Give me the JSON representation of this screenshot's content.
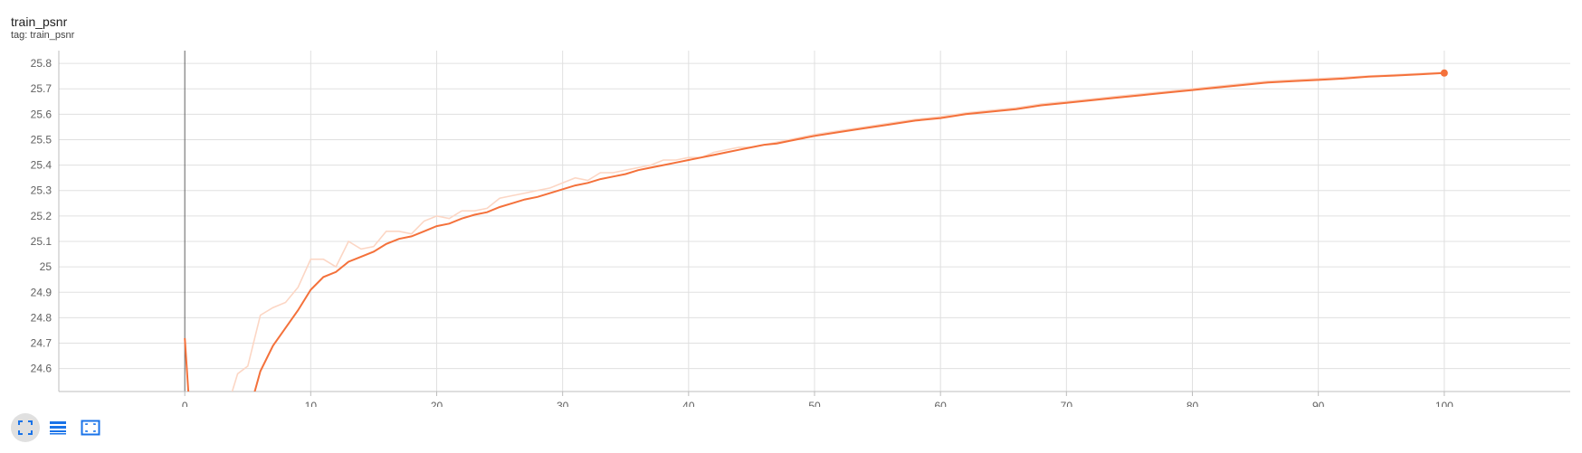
{
  "card": {
    "title": "train_psnr",
    "tag": "tag: train_psnr"
  },
  "colors": {
    "smoothed": "#f4713b",
    "raw": "#fcd6c4",
    "grid": "#e0e0e0",
    "axis": "#bdbdbd",
    "zero_line": "#616161",
    "toolbar_icon": "#1a73e8"
  },
  "toolbar": {
    "icons": [
      "fit-domain-icon",
      "toggle-log-icon",
      "expand-icon"
    ]
  },
  "chart_data": {
    "type": "line",
    "title": "train_psnr",
    "xlabel": "",
    "ylabel": "",
    "xlim": [
      -10,
      110
    ],
    "ylim": [
      24.51,
      25.85
    ],
    "x_ticks": [
      0,
      10,
      20,
      30,
      40,
      50,
      60,
      70,
      80,
      90,
      100
    ],
    "y_ticks": [
      24.6,
      24.7,
      24.8,
      24.9,
      25.0,
      25.1,
      25.2,
      25.3,
      25.4,
      25.5,
      25.6,
      25.7,
      25.8
    ],
    "y_tick_labels": [
      "24.6",
      "24.7",
      "24.8",
      "24.9",
      "25",
      "25.1",
      "25.2",
      "25.3",
      "25.4",
      "25.5",
      "25.6",
      "25.7",
      "25.8"
    ],
    "grid": true,
    "series": [
      {
        "role": "smoothed",
        "x": [
          0,
          0.3,
          5.5,
          6,
          7,
          8,
          9,
          10,
          11,
          12,
          13,
          14,
          15,
          16,
          17,
          18,
          19,
          20,
          21,
          22,
          23,
          24,
          25,
          26,
          27,
          28,
          29,
          30,
          31,
          32,
          33,
          34,
          35,
          36,
          37,
          38,
          39,
          40,
          41,
          42,
          43,
          44,
          45,
          46,
          47,
          48,
          49,
          50,
          52,
          54,
          56,
          58,
          60,
          62,
          64,
          66,
          68,
          70,
          72,
          74,
          76,
          78,
          80,
          82,
          84,
          86,
          88,
          90,
          92,
          94,
          96,
          98,
          100
        ],
        "y": [
          24.72,
          24.5,
          24.5,
          24.59,
          24.69,
          24.76,
          24.83,
          24.91,
          24.96,
          24.98,
          25.02,
          25.04,
          25.06,
          25.09,
          25.11,
          25.12,
          25.14,
          25.16,
          25.17,
          25.19,
          25.205,
          25.215,
          25.235,
          25.25,
          25.265,
          25.275,
          25.29,
          25.305,
          25.32,
          25.33,
          25.345,
          25.355,
          25.365,
          25.38,
          25.39,
          25.4,
          25.41,
          25.42,
          25.43,
          25.44,
          25.45,
          25.46,
          25.47,
          25.48,
          25.485,
          25.495,
          25.505,
          25.515,
          25.53,
          25.545,
          25.56,
          25.575,
          25.585,
          25.6,
          25.61,
          25.62,
          25.635,
          25.645,
          25.655,
          25.665,
          25.675,
          25.685,
          25.695,
          25.705,
          25.715,
          25.725,
          25.73,
          25.735,
          25.74,
          25.748,
          25.752,
          25.757,
          25.762
        ]
      },
      {
        "role": "raw",
        "x": [
          3.7,
          4.2,
          5,
          6,
          7,
          8,
          9,
          10,
          11,
          12,
          13,
          14,
          15,
          16,
          17,
          18,
          19,
          20,
          21,
          22,
          23,
          24,
          25,
          26,
          27,
          28,
          29,
          30,
          31,
          32,
          33,
          34,
          35,
          36,
          37,
          38,
          39,
          40,
          41,
          42,
          43,
          44,
          45,
          46,
          47,
          48,
          49,
          50,
          52,
          54,
          56,
          58,
          60,
          62,
          64,
          66,
          68,
          70,
          72,
          74,
          76,
          78,
          80,
          82,
          84,
          86,
          88,
          90,
          92,
          94,
          96,
          98,
          100
        ],
        "y": [
          24.5,
          24.58,
          24.61,
          24.81,
          24.84,
          24.86,
          24.92,
          25.03,
          25.03,
          25.0,
          25.1,
          25.07,
          25.08,
          25.14,
          25.14,
          25.13,
          25.18,
          25.2,
          25.19,
          25.22,
          25.22,
          25.23,
          25.27,
          25.28,
          25.29,
          25.3,
          25.31,
          25.33,
          25.35,
          25.34,
          25.37,
          25.37,
          25.38,
          25.39,
          25.4,
          25.42,
          25.42,
          25.43,
          25.43,
          25.45,
          25.46,
          25.47,
          25.47,
          25.48,
          25.49,
          25.5,
          25.51,
          25.52,
          25.535,
          25.55,
          25.565,
          25.58,
          25.59,
          25.605,
          25.615,
          25.625,
          25.64,
          25.65,
          25.66,
          25.67,
          25.68,
          25.69,
          25.7,
          25.71,
          25.72,
          25.73,
          25.735,
          25.74,
          25.745,
          25.75,
          25.755,
          25.76,
          25.765
        ]
      }
    ],
    "last_point": {
      "x": 100,
      "y": 25.762
    }
  }
}
